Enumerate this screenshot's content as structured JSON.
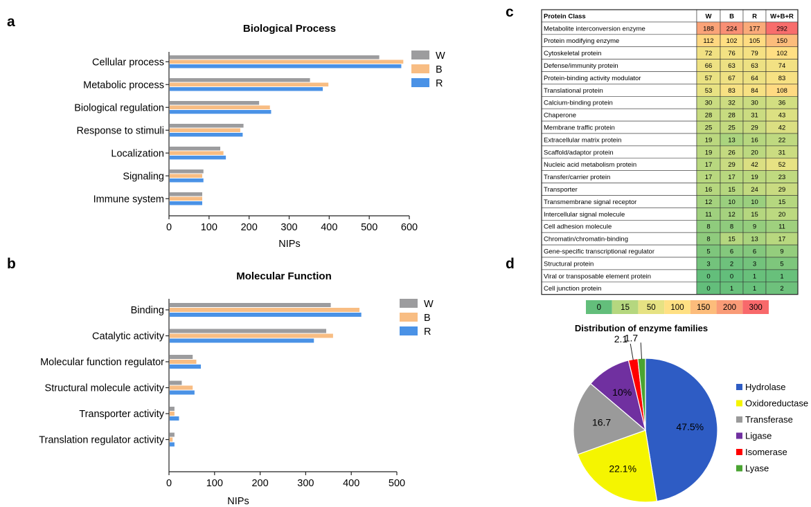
{
  "panels": [
    "a",
    "b",
    "c",
    "d"
  ],
  "colors": {
    "W": "#9c9c9e",
    "B": "#f8bd83",
    "R": "#4a92e6"
  },
  "chart_data": [
    {
      "type": "bar",
      "orientation": "horizontal",
      "title": "Biological Process",
      "xlabel": "NIPs",
      "xlim": [
        0,
        600
      ],
      "xticks": [
        0,
        100,
        200,
        300,
        400,
        500,
        600
      ],
      "categories": [
        "Cellular process",
        "Metabolic process",
        "Biological regulation",
        "Response to stimuli",
        "Localization",
        "Signaling",
        "Immune system"
      ],
      "series": [
        {
          "name": "W",
          "values": [
            525,
            352,
            225,
            186,
            128,
            86,
            83
          ]
        },
        {
          "name": "B",
          "values": [
            585,
            398,
            252,
            178,
            136,
            83,
            83
          ]
        },
        {
          "name": "R",
          "values": [
            580,
            384,
            255,
            184,
            142,
            86,
            83
          ]
        }
      ],
      "legend": "top-right"
    },
    {
      "type": "bar",
      "orientation": "horizontal",
      "title": "Molecular Function",
      "xlabel": "NIPs",
      "xlim": [
        0,
        500
      ],
      "xticks": [
        0,
        100,
        200,
        300,
        400,
        500
      ],
      "categories": [
        "Binding",
        "Catalytic activity",
        "Molecular function regulator",
        "Structural molecule activity",
        "Transporter activity",
        "Translation regulator activity"
      ],
      "series": [
        {
          "name": "W",
          "values": [
            355,
            345,
            52,
            28,
            12,
            12
          ]
        },
        {
          "name": "B",
          "values": [
            418,
            360,
            60,
            52,
            12,
            8
          ]
        },
        {
          "name": "R",
          "values": [
            422,
            318,
            70,
            56,
            22,
            12
          ]
        }
      ],
      "legend": "top-right"
    },
    {
      "type": "table",
      "columns": [
        "Protein Class",
        "W",
        "B",
        "R",
        "W+B+R"
      ],
      "rows": [
        [
          "Metabolite interconversion enzyme",
          188,
          224,
          177,
          292
        ],
        [
          "Protein modifying enzyme",
          112,
          102,
          105,
          150
        ],
        [
          "Cytoskeletal protein",
          72,
          76,
          79,
          102
        ],
        [
          "Defense/immunity protein",
          66,
          63,
          63,
          74
        ],
        [
          "Protein-binding activity modulator",
          57,
          67,
          64,
          83
        ],
        [
          "Translational protein",
          53,
          83,
          84,
          108
        ],
        [
          "Calcium-binding protein",
          30,
          32,
          30,
          36
        ],
        [
          "Chaperone",
          28,
          28,
          31,
          43
        ],
        [
          "Membrane traffic protein",
          25,
          25,
          29,
          42
        ],
        [
          "Extracellular matrix protein",
          19,
          13,
          16,
          22
        ],
        [
          "Scaffold/adaptor protein",
          19,
          26,
          20,
          31
        ],
        [
          "Nucleic acid metabolism protein",
          17,
          29,
          42,
          52
        ],
        [
          "Transfer/carrier protein",
          17,
          17,
          19,
          23
        ],
        [
          "Transporter",
          16,
          15,
          24,
          29
        ],
        [
          "Transmembrane signal receptor",
          12,
          10,
          10,
          15
        ],
        [
          "Intercellular signal molecule",
          11,
          12,
          15,
          20
        ],
        [
          "Cell adhesion molecule",
          8,
          8,
          9,
          11
        ],
        [
          "Chromatin/chromatin-binding",
          8,
          15,
          13,
          17
        ],
        [
          "Gene-specific transcriptional regulator",
          5,
          6,
          6,
          9
        ],
        [
          "Structural protein",
          3,
          2,
          3,
          5
        ],
        [
          "Viral or transposable element protein",
          0,
          0,
          1,
          1
        ],
        [
          "Cell junction protein",
          0,
          1,
          1,
          2
        ]
      ],
      "color_scale": {
        "stops": [
          0,
          15,
          50,
          100,
          150,
          200,
          300
        ],
        "colors": [
          "#63be7b",
          "#b5d77f",
          "#e6e283",
          "#ffe083",
          "#fcbc7b",
          "#f99b77",
          "#f8696b"
        ]
      }
    },
    {
      "type": "pie",
      "title": "Distribution of enzyme families",
      "categories": [
        "Hydrolase",
        "Oxidoreductase",
        "Transferase",
        "Ligase",
        "Isomerase",
        "Lyase"
      ],
      "values": [
        47.5,
        22.1,
        16.7,
        10,
        2.1,
        1.7
      ],
      "labels": [
        "47.5%",
        "22.1%",
        "16.7",
        "10%",
        "2.1",
        "1.7"
      ],
      "colors": [
        "#2e5cc4",
        "#f5f500",
        "#9a9a9a",
        "#7030a0",
        "#ff0000",
        "#4aa432"
      ],
      "legend": "right"
    }
  ]
}
